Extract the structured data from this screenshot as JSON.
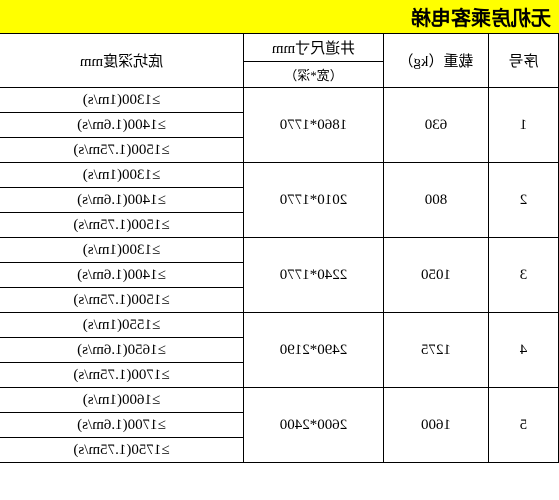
{
  "title": "无机房乘客电梯",
  "headers": {
    "seq": "序号",
    "load": "载重（kg）",
    "size_top": "井道尺寸mm",
    "size_sub": "（宽*深）",
    "pit": "底坑深度mm"
  },
  "rows": [
    {
      "seq": "1",
      "load": "630",
      "size": "1860*1770",
      "pits": [
        "≥1300(1m/s)",
        "≥1400(1.6m/s)",
        "≥1500(1.75m/s)"
      ]
    },
    {
      "seq": "2",
      "load": "800",
      "size": "2010*1770",
      "pits": [
        "≥1300(1m/s)",
        "≥1400(1.6m/s)",
        "≥1500(1.75m/s)"
      ]
    },
    {
      "seq": "3",
      "load": "1050",
      "size": "2240*1770",
      "pits": [
        "≥1300(1m/s)",
        "≥1400(1.6m/s)",
        "≥1500(1.75m/s)"
      ]
    },
    {
      "seq": "4",
      "load": "1275",
      "size": "2490*2190",
      "pits": [
        "≥1550(1m/s)",
        "≥1650(1.6m/s)",
        "≥1700(1.75m/s)"
      ]
    },
    {
      "seq": "5",
      "load": "1600",
      "size": "2600*2400",
      "pits": [
        "≥1600(1m/s)",
        "≥1700(1.6m/s)",
        "≥1750(1.75m/s)"
      ]
    }
  ]
}
